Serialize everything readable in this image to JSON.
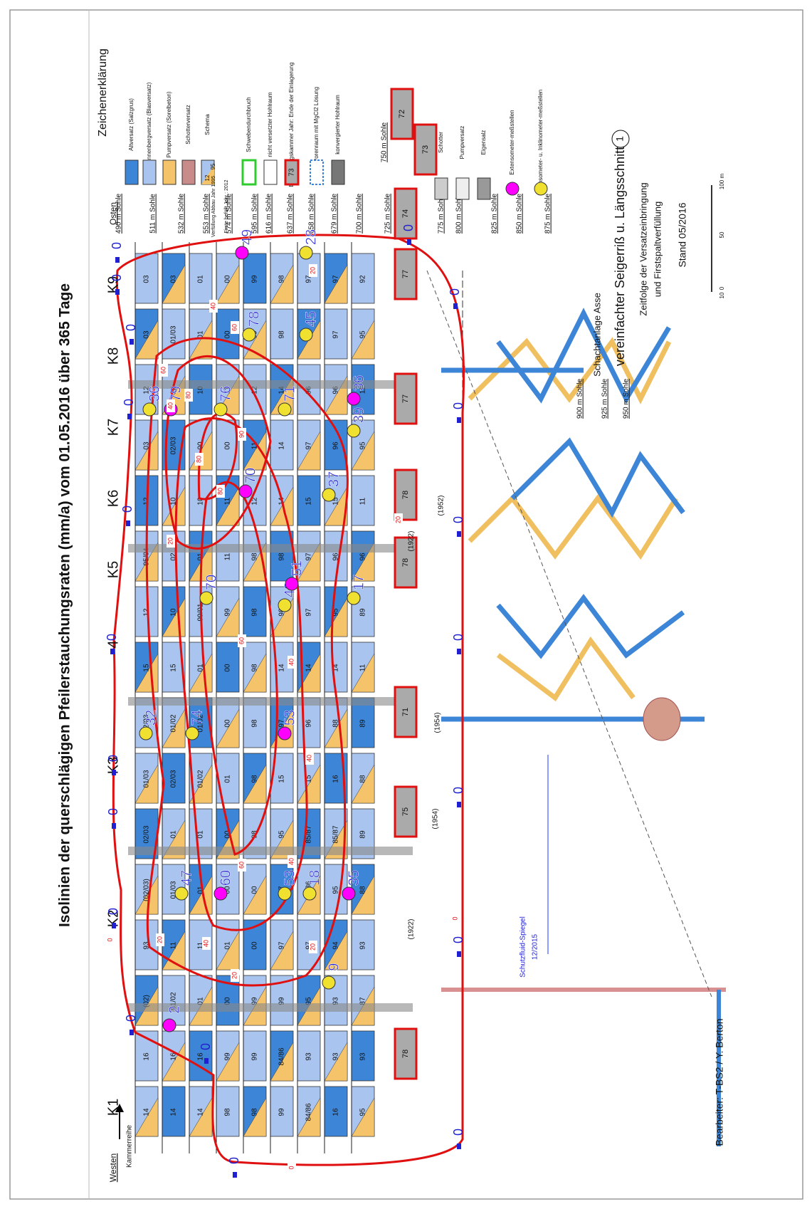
{
  "title": "Isolinien der querschlägigen Pfeilerstauchungsraten (mm/a) vom 01.05.2016 über 365 Tage",
  "legend": {
    "heading": "Zeichenerklärung",
    "items": [
      "Altversatz (Salzgrus)",
      "Ronnenbergversatz (Blasversatz)",
      "Pumpversatz (Sorelbeton)",
      "Schotterversatz",
      "Schema",
      "Schwebendurchbruch",
      "nicht versetzter Hohlraum",
      "Einlagerungskammer Jahr: Ende der Einlagerung",
      "Porenraum mit MgCl2 Lösung",
      "konvergierter Hohlraum"
    ],
    "schema": {
      "fill_year": "Verfüllung Abbau Jahr 1995",
      "roof_year": "Firste befüllt Jahr : 2012",
      "top": "12",
      "bottom": "95",
      "chamber": "73"
    },
    "items_right": [
      "Schotter",
      "Pumpversatz",
      "Eigensalz",
      "Extensometer-meßstellen",
      "Extensometer- u. Inklinometer-meßstellen"
    ]
  },
  "directions": {
    "west": "Westen",
    "east": "Osten",
    "row": "Kammerreihe"
  },
  "chambers": [
    "K1",
    "K2",
    "K3",
    "4",
    "K5",
    "K6",
    "K7",
    "K8",
    "K9"
  ],
  "levels": [
    "490 m Sohle",
    "511 m Sohle",
    "532 m Sohle",
    "553 m Sohle",
    "574 m Sohle",
    "595 m Sohle",
    "616 m Sohle",
    "637 m Sohle",
    "658 m Sohle",
    "679 m Sohle",
    "700 m Sohle",
    "725 m Sohle",
    "750 m Sohle",
    "775 m Sohle",
    "800 m Sohle",
    "825 m Sohle",
    "850 m Sohle",
    "875 m Sohle",
    "900 m Sohle",
    "925 m Sohle",
    "950 m Sohle"
  ],
  "cells": [
    [
      "14",
      "16",
      "(02)",
      "93",
      "(02/03)",
      "02/03",
      "01/03",
      "02/03",
      "15",
      "12",
      "95/04",
      "12",
      "03",
      "12",
      "03",
      "03"
    ],
    [
      "14",
      "16",
      "01/02",
      "11",
      "01/03",
      "01",
      "02/03",
      "01/02",
      "15",
      "10",
      "02",
      "10",
      "02/03",
      "12",
      "01/03",
      "03"
    ],
    [
      "14",
      "16",
      "01",
      "11",
      "01",
      "01",
      "01/02",
      "01/02",
      "01",
      "99/01",
      "01",
      "10",
      "00",
      "10",
      "01",
      "01"
    ],
    [
      "98",
      "99",
      "00",
      "01",
      "00",
      "00",
      "01",
      "00",
      "00",
      "99",
      "11",
      "11",
      "00",
      "11",
      "00",
      "00"
    ],
    [
      "98",
      "99",
      "99",
      "00",
      "00",
      "98",
      "98",
      "98",
      "98",
      "98",
      "98",
      "12",
      "11",
      "12",
      "99",
      "99"
    ],
    [
      "99",
      "84/86",
      "99",
      "97",
      "97",
      "95",
      "15",
      "97",
      "14",
      "98",
      "98",
      "14",
      "14",
      "14",
      "98",
      "98"
    ],
    [
      "84/86",
      "93",
      "95",
      "97",
      "85/86",
      "85/87",
      "15",
      "96",
      "14",
      "97",
      "97",
      "15",
      "97",
      "96",
      "97",
      "97"
    ],
    [
      "16",
      "93",
      "93",
      "94",
      "95",
      "85/87",
      "16",
      "88",
      "14",
      "95",
      "96",
      "15",
      "96",
      "96",
      "97",
      "97"
    ],
    [
      "95",
      "93",
      "87",
      "93",
      "88",
      "89",
      "88",
      "89",
      "11",
      "89",
      "96",
      "11",
      "95",
      "11",
      "95",
      "92"
    ]
  ],
  "storage_chambers": [
    "78",
    "75",
    "71",
    "78",
    "78",
    "77",
    "77",
    "74",
    "73",
    "72"
  ],
  "years": [
    "(1922)",
    "(1954)",
    "(1922)",
    "(1952)",
    "(1954)"
  ],
  "measurements": [
    2,
    9,
    47,
    60,
    53,
    18,
    35,
    32,
    74,
    53,
    70,
    43,
    51,
    17,
    37,
    70,
    39,
    36,
    79,
    76,
    71,
    36,
    78,
    45,
    49,
    28
  ],
  "zero_points": [
    0,
    0,
    0,
    0,
    0,
    0,
    0,
    0,
    0,
    0,
    0,
    0,
    0,
    0,
    0,
    0,
    0,
    0,
    0,
    0
  ],
  "isoline_labels": [
    0,
    20,
    20,
    40,
    20,
    40,
    60,
    40,
    40,
    60,
    20,
    40,
    60,
    80,
    80,
    80,
    90,
    60,
    40,
    20,
    20,
    0,
    0
  ],
  "footer": {
    "site": "Schachtanlage Asse",
    "section": "vereinfachter Seigerriß u. Längsschnitt",
    "sheet": "1",
    "sequence": "Zeitfolge der Versatzeinbringung",
    "sequence2": "und Firstspaltverfüllung",
    "status": "Stand 05/2016",
    "author": "Bearbeiter: T-BS2 / Y. Berton",
    "fluid": "Schutzfluid-Spiegel",
    "fluid_date": "12/2015",
    "scale": [
      "10",
      "0",
      "50",
      "100 m"
    ]
  }
}
